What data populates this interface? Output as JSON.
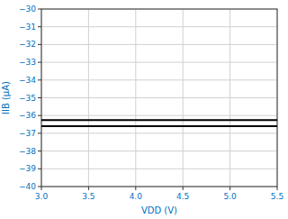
{
  "chart_data": {
    "type": "line",
    "x_label": "VDD (V)",
    "y_label": "IIB (μA)",
    "x": [
      3,
      5.5
    ],
    "series": [
      {
        "color": "#000000",
        "values": [
          -36.25,
          -36.25
        ]
      },
      {
        "color": "#000000",
        "values": [
          -36.6,
          -36.6
        ]
      }
    ],
    "xlim": [
      3,
      5.5
    ],
    "ylim": [
      -40,
      -30
    ],
    "xticks": [
      {
        "value": 3,
        "label": "3.0"
      },
      {
        "value": 3.5,
        "label": "3.5"
      },
      {
        "value": 4,
        "label": "4.0"
      },
      {
        "value": 4.5,
        "label": "4.5"
      },
      {
        "value": 5,
        "label": "5.0"
      },
      {
        "value": 5.5,
        "label": "5.5"
      }
    ],
    "yticks": [
      {
        "value": -40,
        "label": "−40"
      },
      {
        "value": -39,
        "label": "−39"
      },
      {
        "value": -38,
        "label": "−38"
      },
      {
        "value": -37,
        "label": "−37"
      },
      {
        "value": -36,
        "label": "−36"
      },
      {
        "value": -35,
        "label": "−35"
      },
      {
        "value": -34,
        "label": "−34"
      },
      {
        "value": -33,
        "label": "−33"
      },
      {
        "value": -32,
        "label": "−32"
      },
      {
        "value": -31,
        "label": "−31"
      },
      {
        "value": -30,
        "label": "−30"
      }
    ],
    "grid": true
  }
}
